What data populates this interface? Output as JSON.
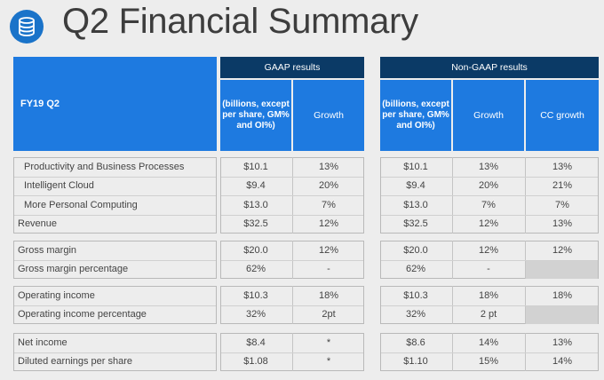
{
  "title": "Q2 Financial Summary",
  "logo_icon": "database-icon",
  "colors": {
    "accent_blue": "#1e7ae0",
    "header_navy": "#0b3a66",
    "background": "#ededed"
  },
  "table": {
    "period_label": "FY19 Q2",
    "gaap_header": "GAAP results",
    "nongaap_header": "Non-GAAP results",
    "units_label": "(billions, except per share, GM% and OI%)",
    "growth_label": "Growth",
    "cc_growth_label": "CC growth",
    "groups": [
      {
        "rows": [
          {
            "label": "Productivity and Business Processes",
            "indent": true,
            "gaap": "$10.1",
            "gaap_growth": "13%",
            "nongaap": "$10.1",
            "nongaap_growth": "13%",
            "cc_growth": "13%"
          },
          {
            "label": "Intelligent Cloud",
            "indent": true,
            "gaap": "$9.4",
            "gaap_growth": "20%",
            "nongaap": "$9.4",
            "nongaap_growth": "20%",
            "cc_growth": "21%"
          },
          {
            "label": "More Personal Computing",
            "indent": true,
            "gaap": "$13.0",
            "gaap_growth": "7%",
            "nongaap": "$13.0",
            "nongaap_growth": "7%",
            "cc_growth": "7%"
          },
          {
            "label": "Revenue",
            "indent": false,
            "gaap": "$32.5",
            "gaap_growth": "12%",
            "nongaap": "$32.5",
            "nongaap_growth": "12%",
            "cc_growth": "13%"
          }
        ]
      },
      {
        "rows": [
          {
            "label": "Gross margin",
            "indent": false,
            "gaap": "$20.0",
            "gaap_growth": "12%",
            "nongaap": "$20.0",
            "nongaap_growth": "12%",
            "cc_growth": "12%"
          },
          {
            "label": "Gross margin percentage",
            "indent": false,
            "gaap": "62%",
            "gaap_growth": "-",
            "nongaap": "62%",
            "nongaap_growth": "-",
            "cc_growth": ""
          }
        ]
      },
      {
        "rows": [
          {
            "label": "Operating income",
            "indent": false,
            "gaap": "$10.3",
            "gaap_growth": "18%",
            "nongaap": "$10.3",
            "nongaap_growth": "18%",
            "cc_growth": "18%"
          },
          {
            "label": "Operating income percentage",
            "indent": false,
            "gaap": "32%",
            "gaap_growth": "2pt",
            "nongaap": "32%",
            "nongaap_growth": "2 pt",
            "cc_growth": ""
          }
        ]
      },
      {
        "rows": [
          {
            "label": "Net income",
            "indent": false,
            "gaap": "$8.4",
            "gaap_growth": "*",
            "nongaap": "$8.6",
            "nongaap_growth": "14%",
            "cc_growth": "13%"
          },
          {
            "label": "Diluted earnings per share",
            "indent": false,
            "gaap": "$1.08",
            "gaap_growth": "*",
            "nongaap": "$1.10",
            "nongaap_growth": "15%",
            "cc_growth": "14%"
          }
        ]
      }
    ]
  }
}
